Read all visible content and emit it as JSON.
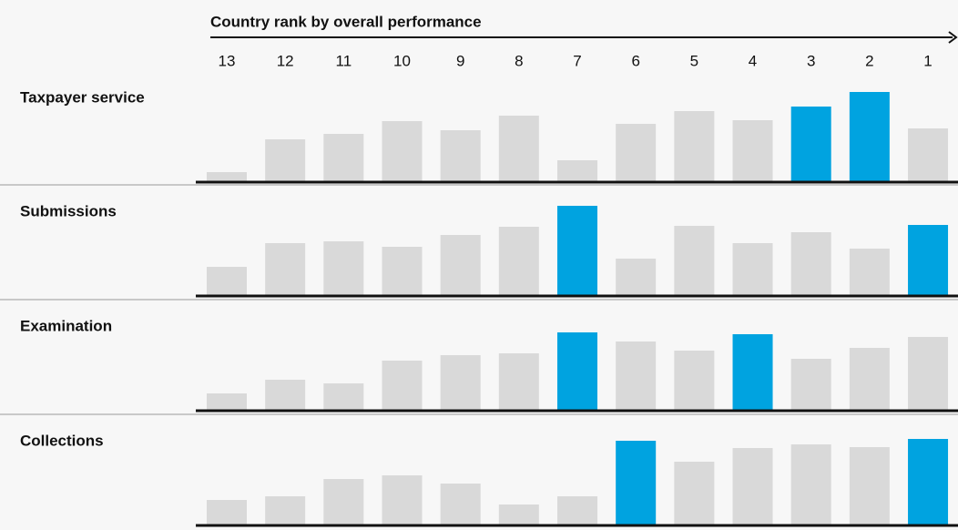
{
  "chart_data": {
    "type": "bar",
    "title": "Country rank by overall performance",
    "categories": [
      "13",
      "12",
      "11",
      "10",
      "9",
      "8",
      "7",
      "6",
      "5",
      "4",
      "3",
      "2",
      "1"
    ],
    "ylim": [
      0,
      100
    ],
    "series": [
      {
        "name": "Taxpayer service",
        "values": [
          10,
          46,
          52,
          66,
          56,
          72,
          23,
          63,
          77,
          67,
          82,
          98,
          58
        ],
        "colors": [
          "#d9d9d9",
          "#d9d9d9",
          "#d9d9d9",
          "#d9d9d9",
          "#d9d9d9",
          "#d9d9d9",
          "#d9d9d9",
          "#d9d9d9",
          "#d9d9d9",
          "#d9d9d9",
          "#00a3e0",
          "#00a3e0",
          "#d9d9d9"
        ]
      },
      {
        "name": "Submissions",
        "values": [
          31,
          57,
          59,
          53,
          66,
          75,
          98,
          40,
          76,
          57,
          69,
          51,
          77
        ],
        "colors": [
          "#d9d9d9",
          "#d9d9d9",
          "#d9d9d9",
          "#d9d9d9",
          "#d9d9d9",
          "#d9d9d9",
          "#00a3e0",
          "#d9d9d9",
          "#d9d9d9",
          "#d9d9d9",
          "#d9d9d9",
          "#d9d9d9",
          "#00a3e0"
        ]
      },
      {
        "name": "Examination",
        "values": [
          18,
          33,
          29,
          54,
          60,
          62,
          85,
          75,
          65,
          83,
          56,
          68,
          80
        ],
        "colors": [
          "#d9d9d9",
          "#d9d9d9",
          "#d9d9d9",
          "#d9d9d9",
          "#d9d9d9",
          "#d9d9d9",
          "#00a3e0",
          "#d9d9d9",
          "#d9d9d9",
          "#00a3e0",
          "#d9d9d9",
          "#d9d9d9",
          "#d9d9d9"
        ]
      },
      {
        "name": "Collections",
        "values": [
          27,
          31,
          50,
          54,
          45,
          22,
          31,
          92,
          69,
          84,
          88,
          85,
          94
        ],
        "colors": [
          "#d9d9d9",
          "#d9d9d9",
          "#d9d9d9",
          "#d9d9d9",
          "#d9d9d9",
          "#d9d9d9",
          "#d9d9d9",
          "#00a3e0",
          "#d9d9d9",
          "#d9d9d9",
          "#d9d9d9",
          "#d9d9d9",
          "#00a3e0"
        ]
      }
    ]
  }
}
